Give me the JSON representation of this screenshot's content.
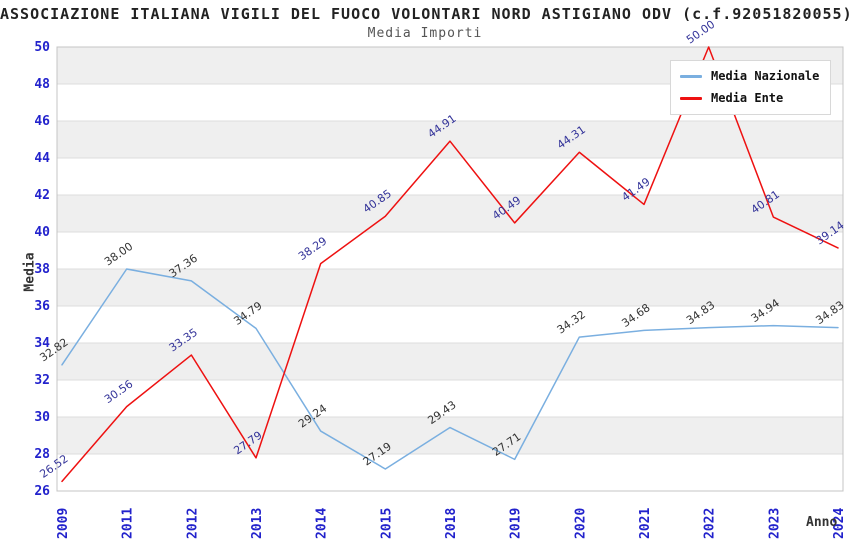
{
  "header": {
    "title": "ASSOCIAZIONE ITALIANA VIGILI DEL FUOCO VOLONTARI NORD ASTIGIANO ODV (c.f.92051820055)",
    "subtitle": "Media Importi"
  },
  "axes": {
    "y_title": "Media",
    "x_title": "Anno"
  },
  "legend": {
    "entries": [
      {
        "label": "Media Nazionale",
        "color": "#7aafe0"
      },
      {
        "label": "Media Ente",
        "color": "#ee1111"
      }
    ]
  },
  "chart_data": {
    "type": "line",
    "title": "Media Importi",
    "xlabel": "Anno",
    "ylabel": "Media",
    "categories": [
      "2009",
      "2011",
      "2012",
      "2013",
      "2014",
      "2015",
      "2018",
      "2019",
      "2020",
      "2021",
      "2022",
      "2023",
      "2024"
    ],
    "series": [
      {
        "name": "Media Nazionale",
        "color": "#7aafe0",
        "label_color": "#333333",
        "values": [
          32.82,
          38.0,
          37.36,
          34.79,
          29.24,
          27.19,
          29.43,
          27.71,
          34.32,
          34.68,
          34.83,
          34.94,
          34.83
        ]
      },
      {
        "name": "Media Ente",
        "color": "#ee1111",
        "label_color": "#333399",
        "values": [
          26.52,
          30.56,
          33.35,
          27.79,
          38.29,
          40.85,
          44.91,
          40.49,
          44.31,
          41.49,
          50.0,
          40.81,
          39.14
        ]
      }
    ],
    "ylim": [
      26,
      50
    ],
    "ytick_step": 2,
    "grid": true,
    "band_fill": "#efefef",
    "gridline_color": "#dcdcdc",
    "border_color": "#c4c4c4",
    "tick_color": "#2222cc",
    "legend_position": "top-right",
    "value_label_decimals": 2
  }
}
